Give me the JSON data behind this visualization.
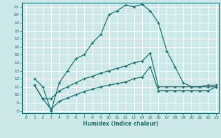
{
  "xlabel": "Humidex (Indice chaleur)",
  "ylabel": "",
  "bg_color": "#cce8e8",
  "grid_color": "#ffffff",
  "line_color": "#1a7070",
  "xlim": [
    -0.5,
    23.3
  ],
  "ylim": [
    7.7,
    21.5
  ],
  "xticks": [
    0,
    1,
    2,
    3,
    4,
    5,
    6,
    7,
    8,
    9,
    10,
    11,
    12,
    13,
    14,
    15,
    16,
    17,
    18,
    19,
    20,
    21,
    22,
    23
  ],
  "yticks": [
    8,
    9,
    10,
    11,
    12,
    13,
    14,
    15,
    16,
    17,
    18,
    19,
    20,
    21
  ],
  "line1_x": [
    1,
    2,
    3,
    4,
    5,
    6,
    7,
    8,
    9,
    10,
    11,
    12,
    13,
    14,
    15,
    16,
    17,
    18,
    19,
    20,
    21,
    22,
    23
  ],
  "line1_y": [
    12,
    11,
    8,
    11.5,
    13,
    14.5,
    15,
    16.5,
    17.5,
    20,
    20.5,
    21.2,
    21.0,
    21.3,
    20.5,
    19,
    15.5,
    13.5,
    11.5,
    11,
    11,
    11.2,
    11.2
  ],
  "line2_x": [
    1,
    2,
    3,
    4,
    5,
    6,
    7,
    8,
    9,
    10,
    11,
    12,
    13,
    14,
    15,
    16,
    17,
    18,
    19,
    20,
    21,
    22,
    23
  ],
  "line2_y": [
    11.2,
    9.5,
    9.5,
    10.5,
    11.0,
    11.5,
    12.0,
    12.3,
    12.7,
    13.0,
    13.3,
    13.6,
    14.0,
    14.2,
    15.2,
    11.0,
    11.0,
    11.0,
    11.0,
    11.0,
    11.0,
    11.0,
    11.0
  ],
  "line3_x": [
    1,
    2,
    3,
    4,
    5,
    6,
    7,
    8,
    9,
    10,
    11,
    12,
    13,
    14,
    15,
    16,
    17,
    18,
    19,
    20,
    21,
    22,
    23
  ],
  "line3_y": [
    11.2,
    9.5,
    8.2,
    9.2,
    9.6,
    10.0,
    10.4,
    10.7,
    11.0,
    11.2,
    11.4,
    11.6,
    12.0,
    12.2,
    13.5,
    10.5,
    10.5,
    10.5,
    10.5,
    10.5,
    10.5,
    10.5,
    11.0
  ]
}
